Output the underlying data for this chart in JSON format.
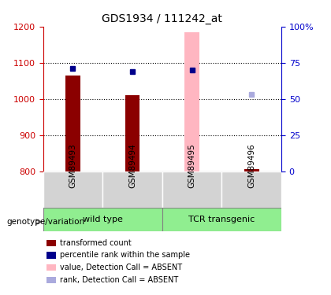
{
  "title": "GDS1934 / 111242_at",
  "samples": [
    "GSM89493",
    "GSM89494",
    "GSM89495",
    "GSM89496"
  ],
  "groups": [
    {
      "label": "wild type",
      "color": "#90EE90",
      "indices": [
        0,
        1
      ]
    },
    {
      "label": "TCR transgenic",
      "color": "#90EE90",
      "indices": [
        2,
        3
      ]
    }
  ],
  "ylim_left": [
    800,
    1200
  ],
  "ylim_right": [
    0,
    100
  ],
  "yticks_left": [
    800,
    900,
    1000,
    1100,
    1200
  ],
  "yticks_right": [
    0,
    25,
    50,
    75,
    100
  ],
  "ytick_labels_right": [
    "0",
    "25",
    "50",
    "75",
    "100%"
  ],
  "bar_values": [
    1065,
    1010,
    null,
    806
  ],
  "bar_color": "#8B0000",
  "bar_absent_color": "#FFB6C1",
  "absent_bar_value": 1185,
  "percentile_values": [
    71,
    69,
    70,
    null
  ],
  "percentile_color": "#00008B",
  "percentile_absent_color": "#AAAADD",
  "absent_percentile_value": 53,
  "left_tick_color": "#CC0000",
  "right_tick_color": "#0000CC",
  "legend_items": [
    {
      "label": "transformed count",
      "color": "#8B0000"
    },
    {
      "label": "percentile rank within the sample",
      "color": "#00008B"
    },
    {
      "label": "value, Detection Call = ABSENT",
      "color": "#FFB6C1"
    },
    {
      "label": "rank, Detection Call = ABSENT",
      "color": "#AAAADD"
    }
  ],
  "group_label": "genotype/variation",
  "panel_bg": "#D3D3D3"
}
